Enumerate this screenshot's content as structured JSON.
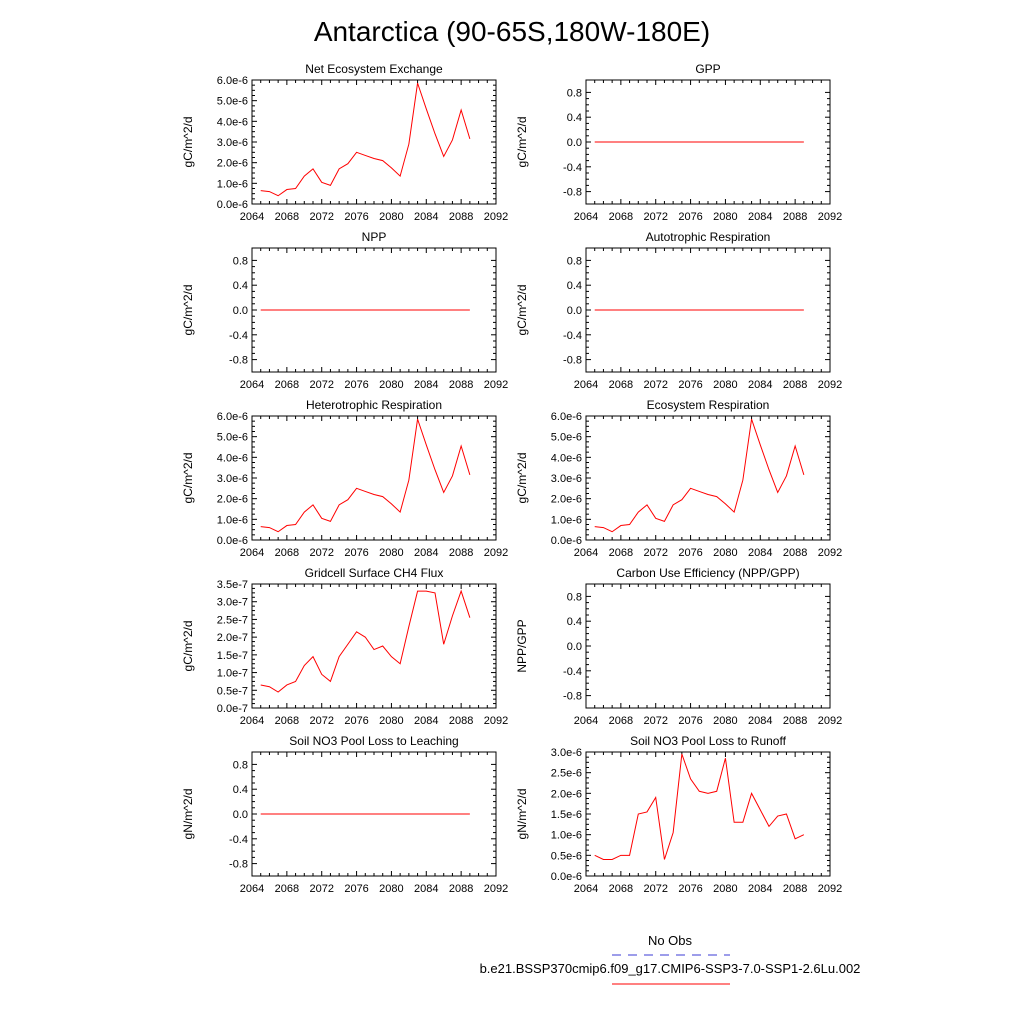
{
  "figure": {
    "title": "Antarctica (90-65S,180W-180E)",
    "legend": [
      {
        "label": "No Obs",
        "color": "#3b3bd6",
        "dash": true
      },
      {
        "label": "b.e21.BSSP370cmip6.f09_g17.CMIP6-SSP3-7.0-SSP1-2.6Lu.002",
        "color": "#ff0000",
        "dash": false
      }
    ]
  },
  "chart_data": [
    {
      "type": "line",
      "title": "Net Ecosystem Exchange",
      "ylabel": "gC/m^2/d",
      "xlim": [
        2064,
        2092
      ],
      "xticks": [
        2064,
        2068,
        2072,
        2076,
        2080,
        2084,
        2088,
        2092
      ],
      "ylim": [
        0,
        6e-06
      ],
      "yticks": [
        0,
        1e-06,
        2e-06,
        3e-06,
        4e-06,
        5e-06,
        6e-06
      ],
      "yticklabels": [
        "0.0e-6",
        "1.0e-6",
        "2.0e-6",
        "3.0e-6",
        "4.0e-6",
        "5.0e-6",
        "6.0e-6"
      ],
      "series": [
        {
          "color": "#ff0000",
          "x": [
            2065,
            2066,
            2067,
            2068,
            2069,
            2070,
            2071,
            2072,
            2073,
            2074,
            2075,
            2076,
            2077,
            2078,
            2079,
            2080,
            2081,
            2082,
            2083,
            2084,
            2085,
            2086,
            2087,
            2088,
            2089
          ],
          "y": [
            6.5e-07,
            6e-07,
            4e-07,
            7e-07,
            7.5e-07,
            1.35e-06,
            1.7e-06,
            1.05e-06,
            9e-07,
            1.7e-06,
            1.95e-06,
            2.5e-06,
            2.35e-06,
            2.2e-06,
            2.1e-06,
            1.75e-06,
            1.35e-06,
            2.9e-06,
            5.85e-06,
            4.6e-06,
            3.4e-06,
            2.3e-06,
            3.1e-06,
            4.55e-06,
            3.15e-06
          ]
        }
      ]
    },
    {
      "type": "line",
      "title": "GPP",
      "ylabel": "gC/m^2/d",
      "xlim": [
        2064,
        2092
      ],
      "xticks": [
        2064,
        2068,
        2072,
        2076,
        2080,
        2084,
        2088,
        2092
      ],
      "ylim": [
        -1,
        1
      ],
      "yticks": [
        -0.8,
        -0.4,
        0,
        0.4,
        0.8
      ],
      "yticklabels": [
        "-0.8",
        "-0.4",
        "0.0",
        "0.4",
        "0.8"
      ],
      "series": [
        {
          "color": "#ff0000",
          "x": [
            2065,
            2089
          ],
          "y": [
            0,
            0
          ]
        }
      ]
    },
    {
      "type": "line",
      "title": "NPP",
      "ylabel": "gC/m^2/d",
      "xlim": [
        2064,
        2092
      ],
      "xticks": [
        2064,
        2068,
        2072,
        2076,
        2080,
        2084,
        2088,
        2092
      ],
      "ylim": [
        -1,
        1
      ],
      "yticks": [
        -0.8,
        -0.4,
        0,
        0.4,
        0.8
      ],
      "yticklabels": [
        "-0.8",
        "-0.4",
        "0.0",
        "0.4",
        "0.8"
      ],
      "series": [
        {
          "color": "#ff0000",
          "x": [
            2065,
            2089
          ],
          "y": [
            0,
            0
          ]
        }
      ]
    },
    {
      "type": "line",
      "title": "Autotrophic Respiration",
      "ylabel": "gC/m^2/d",
      "xlim": [
        2064,
        2092
      ],
      "xticks": [
        2064,
        2068,
        2072,
        2076,
        2080,
        2084,
        2088,
        2092
      ],
      "ylim": [
        -1,
        1
      ],
      "yticks": [
        -0.8,
        -0.4,
        0,
        0.4,
        0.8
      ],
      "yticklabels": [
        "-0.8",
        "-0.4",
        "0.0",
        "0.4",
        "0.8"
      ],
      "series": [
        {
          "color": "#ff0000",
          "x": [
            2065,
            2089
          ],
          "y": [
            0,
            0
          ]
        }
      ]
    },
    {
      "type": "line",
      "title": "Heterotrophic Respiration",
      "ylabel": "gC/m^2/d",
      "xlim": [
        2064,
        2092
      ],
      "xticks": [
        2064,
        2068,
        2072,
        2076,
        2080,
        2084,
        2088,
        2092
      ],
      "ylim": [
        0,
        6e-06
      ],
      "yticks": [
        0,
        1e-06,
        2e-06,
        3e-06,
        4e-06,
        5e-06,
        6e-06
      ],
      "yticklabels": [
        "0.0e-6",
        "1.0e-6",
        "2.0e-6",
        "3.0e-6",
        "4.0e-6",
        "5.0e-6",
        "6.0e-6"
      ],
      "series": [
        {
          "color": "#ff0000",
          "x": [
            2065,
            2066,
            2067,
            2068,
            2069,
            2070,
            2071,
            2072,
            2073,
            2074,
            2075,
            2076,
            2077,
            2078,
            2079,
            2080,
            2081,
            2082,
            2083,
            2084,
            2085,
            2086,
            2087,
            2088,
            2089
          ],
          "y": [
            6.5e-07,
            6e-07,
            4e-07,
            7e-07,
            7.5e-07,
            1.35e-06,
            1.7e-06,
            1.05e-06,
            9e-07,
            1.7e-06,
            1.95e-06,
            2.5e-06,
            2.35e-06,
            2.2e-06,
            2.1e-06,
            1.75e-06,
            1.35e-06,
            2.9e-06,
            5.85e-06,
            4.6e-06,
            3.4e-06,
            2.3e-06,
            3.1e-06,
            4.55e-06,
            3.15e-06
          ]
        }
      ]
    },
    {
      "type": "line",
      "title": "Ecosystem Respiration",
      "ylabel": "gC/m^2/d",
      "xlim": [
        2064,
        2092
      ],
      "xticks": [
        2064,
        2068,
        2072,
        2076,
        2080,
        2084,
        2088,
        2092
      ],
      "ylim": [
        0,
        6e-06
      ],
      "yticks": [
        0,
        1e-06,
        2e-06,
        3e-06,
        4e-06,
        5e-06,
        6e-06
      ],
      "yticklabels": [
        "0.0e-6",
        "1.0e-6",
        "2.0e-6",
        "3.0e-6",
        "4.0e-6",
        "5.0e-6",
        "6.0e-6"
      ],
      "series": [
        {
          "color": "#ff0000",
          "x": [
            2065,
            2066,
            2067,
            2068,
            2069,
            2070,
            2071,
            2072,
            2073,
            2074,
            2075,
            2076,
            2077,
            2078,
            2079,
            2080,
            2081,
            2082,
            2083,
            2084,
            2085,
            2086,
            2087,
            2088,
            2089
          ],
          "y": [
            6.5e-07,
            6e-07,
            4e-07,
            7e-07,
            7.5e-07,
            1.35e-06,
            1.7e-06,
            1.05e-06,
            9e-07,
            1.7e-06,
            1.95e-06,
            2.5e-06,
            2.35e-06,
            2.2e-06,
            2.1e-06,
            1.75e-06,
            1.35e-06,
            2.9e-06,
            5.85e-06,
            4.6e-06,
            3.4e-06,
            2.3e-06,
            3.1e-06,
            4.55e-06,
            3.15e-06
          ]
        }
      ]
    },
    {
      "type": "line",
      "title": "Gridcell Surface CH4 Flux",
      "ylabel": "gC/m^2/d",
      "xlim": [
        2064,
        2092
      ],
      "xticks": [
        2064,
        2068,
        2072,
        2076,
        2080,
        2084,
        2088,
        2092
      ],
      "ylim": [
        0,
        3.5e-07
      ],
      "yticks": [
        0,
        5e-08,
        1e-07,
        1.5e-07,
        2e-07,
        2.5e-07,
        3e-07,
        3.5e-07
      ],
      "yticklabels": [
        "0.0e-7",
        "0.5e-7",
        "1.0e-7",
        "1.5e-7",
        "2.0e-7",
        "2.5e-7",
        "3.0e-7",
        "3.5e-7"
      ],
      "series": [
        {
          "color": "#ff0000",
          "x": [
            2065,
            2066,
            2067,
            2068,
            2069,
            2070,
            2071,
            2072,
            2073,
            2074,
            2075,
            2076,
            2077,
            2078,
            2079,
            2080,
            2081,
            2082,
            2083,
            2084,
            2085,
            2086,
            2087,
            2088,
            2089
          ],
          "y": [
            6.5e-08,
            6e-08,
            4.5e-08,
            6.5e-08,
            7.5e-08,
            1.2e-07,
            1.45e-07,
            9.5e-08,
            7.5e-08,
            1.45e-07,
            1.8e-07,
            2.15e-07,
            2e-07,
            1.65e-07,
            1.75e-07,
            1.45e-07,
            1.25e-07,
            2.3e-07,
            3.3e-07,
            3.3e-07,
            3.25e-07,
            1.8e-07,
            2.6e-07,
            3.3e-07,
            2.55e-07
          ]
        }
      ]
    },
    {
      "type": "line",
      "title": "Carbon Use Efficiency (NPP/GPP)",
      "ylabel": "NPP/GPP",
      "xlim": [
        2064,
        2092
      ],
      "xticks": [
        2064,
        2068,
        2072,
        2076,
        2080,
        2084,
        2088,
        2092
      ],
      "ylim": [
        -1,
        1
      ],
      "yticks": [
        -0.8,
        -0.4,
        0,
        0.4,
        0.8
      ],
      "yticklabels": [
        "-0.8",
        "-0.4",
        "0.0",
        "0.4",
        "0.8"
      ],
      "series": []
    },
    {
      "type": "line",
      "title": "Soil NO3 Pool Loss to Leaching",
      "ylabel": "gN/m^2/d",
      "xlim": [
        2064,
        2092
      ],
      "xticks": [
        2064,
        2068,
        2072,
        2076,
        2080,
        2084,
        2088,
        2092
      ],
      "ylim": [
        -1,
        1
      ],
      "yticks": [
        -0.8,
        -0.4,
        0,
        0.4,
        0.8
      ],
      "yticklabels": [
        "-0.8",
        "-0.4",
        "0.0",
        "0.4",
        "0.8"
      ],
      "series": [
        {
          "color": "#ff0000",
          "x": [
            2065,
            2089
          ],
          "y": [
            0,
            0
          ]
        }
      ]
    },
    {
      "type": "line",
      "title": "Soil NO3 Pool Loss to Runoff",
      "ylabel": "gN/m^2/d",
      "xlim": [
        2064,
        2092
      ],
      "xticks": [
        2064,
        2068,
        2072,
        2076,
        2080,
        2084,
        2088,
        2092
      ],
      "ylim": [
        0,
        3e-06
      ],
      "yticks": [
        0,
        5e-07,
        1e-06,
        1.5e-06,
        2e-06,
        2.5e-06,
        3e-06
      ],
      "yticklabels": [
        "0.0e-6",
        "0.5e-6",
        "1.0e-6",
        "1.5e-6",
        "2.0e-6",
        "2.5e-6",
        "3.0e-6"
      ],
      "series": [
        {
          "color": "#ff0000",
          "x": [
            2065,
            2066,
            2067,
            2068,
            2069,
            2070,
            2071,
            2072,
            2073,
            2074,
            2075,
            2076,
            2077,
            2078,
            2079,
            2080,
            2081,
            2082,
            2083,
            2084,
            2085,
            2086,
            2087,
            2088,
            2089
          ],
          "y": [
            5e-07,
            4e-07,
            4e-07,
            5e-07,
            5e-07,
            1.5e-06,
            1.55e-06,
            1.9e-06,
            4e-07,
            1.05e-06,
            2.95e-06,
            2.35e-06,
            2.05e-06,
            2e-06,
            2.05e-06,
            2.85e-06,
            1.3e-06,
            1.3e-06,
            2e-06,
            1.6e-06,
            1.2e-06,
            1.45e-06,
            1.5e-06,
            9e-07,
            1e-06
          ]
        }
      ]
    }
  ]
}
